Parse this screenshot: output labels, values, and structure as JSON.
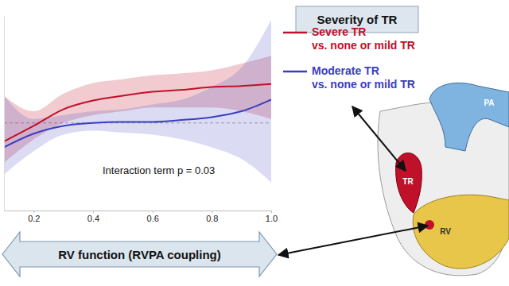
{
  "chart_data": {
    "type": "line",
    "legend_title": "Severity of TR",
    "annotations": [
      "Interaction term p = 0.03"
    ],
    "x_label": "RV function (RVPA coupling)",
    "diagram_labels": [
      "TR",
      "RV",
      "PA"
    ],
    "x": [
      0.1,
      0.2,
      0.3,
      0.4,
      0.5,
      0.6,
      0.7,
      0.8,
      0.9,
      1.0
    ],
    "series": [
      {
        "name": "Severe TR\nvs. none or mild TR",
        "color": "#c0102a",
        "values": [
          0.81,
          0.97,
          1.14,
          1.23,
          1.28,
          1.32,
          1.34,
          1.37,
          1.38,
          1.4
        ],
        "lower": [
          0.59,
          0.83,
          1.0,
          1.08,
          1.12,
          1.16,
          1.16,
          1.16,
          1.12,
          1.04
        ],
        "upper": [
          1.28,
          1.12,
          1.3,
          1.41,
          1.45,
          1.49,
          1.51,
          1.54,
          1.61,
          1.69
        ]
      },
      {
        "name": "Moderate TR\nvs. none or mild TR",
        "color": "#3a3fc0",
        "values": [
          0.75,
          0.89,
          0.97,
          1.0,
          1.01,
          1.01,
          1.03,
          1.06,
          1.12,
          1.24
        ],
        "lower": [
          0.47,
          0.71,
          0.88,
          0.92,
          0.9,
          0.88,
          0.83,
          0.75,
          0.63,
          0.39
        ],
        "upper": [
          1.28,
          1.04,
          1.08,
          1.12,
          1.14,
          1.19,
          1.24,
          1.37,
          1.57,
          2.06
        ]
      }
    ],
    "reference_line": 1,
    "xlim": [
      0.1,
      1.0
    ],
    "xticks": [
      0.2,
      0.4,
      0.6,
      {
        "value": 1.0,
        "label": "1.0"
      },
      0.8
    ],
    "ylim": [
      0.1,
      2.1
    ],
    "tick_labels": "x",
    "legend": "upper right"
  }
}
